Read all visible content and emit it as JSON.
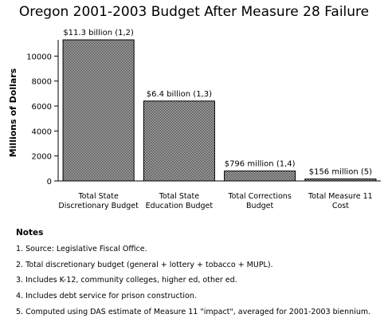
{
  "title": "Oregon 2001-2003 Budget After Measure 28 Failure",
  "chart_data": {
    "type": "bar",
    "title": "Oregon 2001-2003 Budget After Measure 28 Failure",
    "ylabel": "Millions of Dollars",
    "xlabel": "",
    "ylim": [
      0,
      11300
    ],
    "yticks": [
      0,
      2000,
      4000,
      6000,
      8000,
      10000
    ],
    "grid": false,
    "categories": [
      [
        "Total State",
        "Discretionary Budget"
      ],
      [
        "Total State",
        "Education Budget"
      ],
      [
        "Total Corrections",
        "Budget"
      ],
      [
        "Total Measure 11",
        "Cost"
      ]
    ],
    "values": [
      11300,
      6400,
      796,
      156
    ],
    "data_labels": [
      "$11.3 billion (1,2)",
      "$6.4 billion (1,3)",
      "$796 million (1,4)",
      "$156 million (5)"
    ],
    "fill_color": "#ffffff",
    "hatch_color": "#000000"
  },
  "notes": {
    "heading": "Notes",
    "items": [
      "1. Source: Legislative Fiscal Office.",
      "2. Total discretionary budget (general + lottery + tobacco + MUPL).",
      "3. Includes K-12, community colleges, higher ed, other ed.",
      "4. Includes debt service for prison construction.",
      "5. Computed using DAS estimate of Measure 11 \"impact\", averaged for 2001-2003 biennium."
    ]
  }
}
